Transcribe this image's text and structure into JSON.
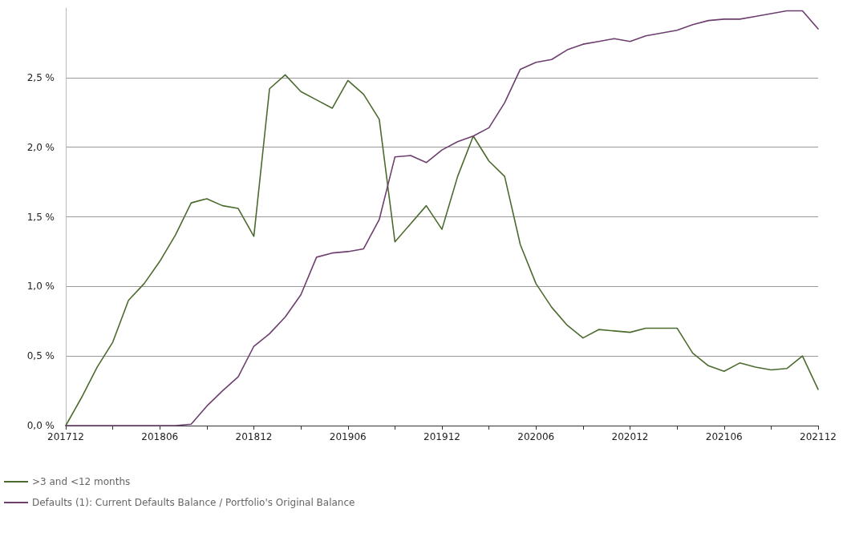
{
  "chart_data": {
    "type": "line",
    "categories": [
      "201712",
      null,
      null,
      null,
      null,
      null,
      "201806",
      null,
      null,
      null,
      null,
      null,
      "201812",
      null,
      null,
      null,
      null,
      null,
      "201906",
      null,
      null,
      null,
      null,
      null,
      "201912",
      null,
      null,
      null,
      null,
      null,
      "202006",
      null,
      null,
      null,
      null,
      null,
      "202012",
      null,
      null,
      null,
      null,
      null,
      "202106",
      null,
      null,
      null,
      null,
      null,
      "202112"
    ],
    "series": [
      {
        "name": ">3 and <12 months",
        "color": "#4b6b2e",
        "values": [
          0.0,
          0.2,
          0.42,
          0.6,
          0.9,
          1.02,
          1.18,
          1.37,
          1.6,
          1.63,
          1.58,
          1.56,
          1.36,
          2.42,
          2.52,
          2.4,
          2.34,
          2.28,
          2.48,
          2.38,
          2.2,
          1.32,
          1.45,
          1.58,
          1.41,
          1.79,
          2.08,
          1.9,
          1.79,
          1.3,
          1.02,
          0.85,
          0.72,
          0.63,
          0.69,
          0.68,
          0.67,
          0.7,
          0.7,
          0.7,
          0.52,
          0.43,
          0.39,
          0.45,
          0.42,
          0.4,
          0.41,
          0.5,
          0.26
        ]
      },
      {
        "name": "Defaults (1): Current Defaults Balance / Portfolio's Original Balance",
        "color": "#6e3f6e",
        "values": [
          0,
          0,
          0,
          0,
          0,
          0,
          0,
          0,
          0.01,
          0.14,
          0.25,
          0.35,
          0.57,
          0.66,
          0.78,
          0.94,
          1.21,
          1.24,
          1.25,
          1.27,
          1.48,
          1.93,
          1.94,
          1.89,
          1.98,
          2.04,
          2.08,
          2.14,
          2.32,
          2.56,
          2.61,
          2.63,
          2.7,
          2.74,
          2.76,
          2.78,
          2.76,
          2.8,
          2.82,
          2.84,
          2.88,
          2.91,
          2.92,
          2.92,
          2.94,
          2.96,
          2.98,
          2.98,
          2.85
        ]
      }
    ],
    "ylim": [
      0,
      3
    ],
    "yticks": [
      {
        "value": 0,
        "label": "0,0 %"
      },
      {
        "value": 0.5,
        "label": "0,5 %"
      },
      {
        "value": 1,
        "label": "1,0 %"
      },
      {
        "value": 1.5,
        "label": "1,5 %"
      },
      {
        "value": 2,
        "label": "2,0 %"
      },
      {
        "value": 2.5,
        "label": "2,5 %"
      }
    ],
    "grid": "y",
    "legend": "bottom left",
    "marker": "none",
    "line_style": "solid"
  }
}
